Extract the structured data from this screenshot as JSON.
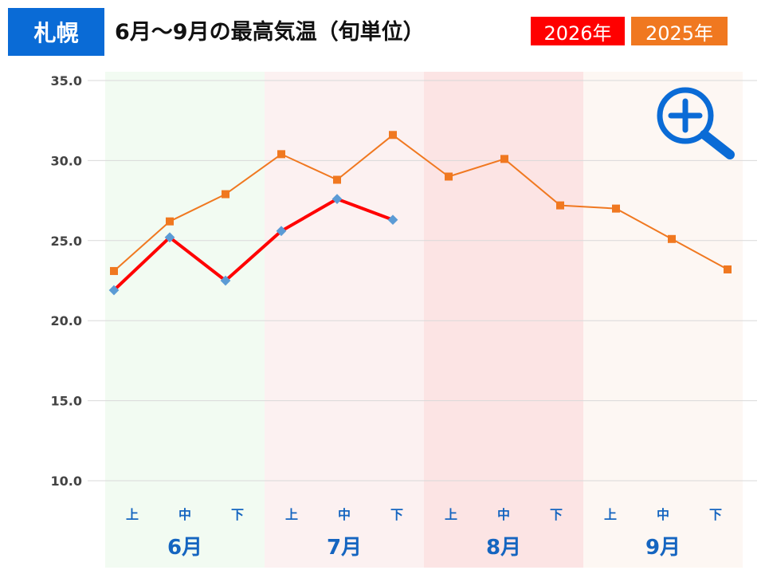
{
  "header": {
    "city": "札幌",
    "title": "6月～9月の最高気温（旬単位）"
  },
  "chart_data": {
    "type": "line",
    "title": "6月～9月の最高気温（旬単位）",
    "xlabel": "",
    "ylabel": "",
    "ylim": [
      10,
      35
    ],
    "yticks": [
      "35.0",
      "30.0",
      "25.0",
      "20.0",
      "15.0",
      "10.0"
    ],
    "grid": true,
    "legend": "top-right",
    "months": [
      "6月",
      "7月",
      "8月",
      "9月"
    ],
    "periods": [
      "上",
      "中",
      "下"
    ],
    "categories": [
      "6月上",
      "6月中",
      "6月下",
      "7月上",
      "7月中",
      "7月下",
      "8月上",
      "8月中",
      "8月下",
      "9月上",
      "9月中",
      "9月下"
    ],
    "series": [
      {
        "name": "2026年",
        "color": "#ff0000",
        "marker_color": "#5b9bd5",
        "values": [
          21.9,
          25.2,
          22.5,
          25.6,
          27.6,
          26.3,
          null,
          null,
          null,
          null,
          null,
          null
        ]
      },
      {
        "name": "2025年",
        "color": "#f07820",
        "marker_color": "#f07820",
        "values": [
          23.1,
          26.2,
          27.9,
          30.4,
          28.8,
          31.6,
          29.0,
          30.1,
          27.2,
          27.0,
          25.1,
          23.2
        ]
      }
    ],
    "month_band_colors": [
      "#f2fbf2",
      "#fcf1f1",
      "#fce4e4",
      "#fdf7f3"
    ]
  },
  "icons": {
    "zoom": "zoom-in-icon",
    "zoom_color": "#0a6bd6"
  }
}
